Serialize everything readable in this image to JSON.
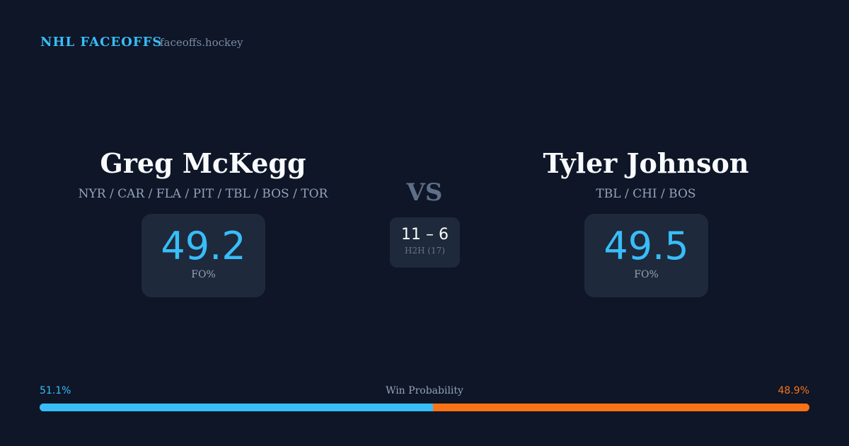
{
  "header": {
    "brand": "NHL FACEOFFS",
    "domain": "faceoffs.hockey"
  },
  "left": {
    "name": "Greg McKegg",
    "teams": "NYR / CAR / FLA / PIT / TBL / BOS / TOR",
    "fo_value": "49.2",
    "fo_label": "FO%"
  },
  "right": {
    "name": "Tyler Johnson",
    "teams": "TBL / CHI / BOS",
    "fo_value": "49.5",
    "fo_label": "FO%"
  },
  "versus": {
    "label": "VS",
    "score": "11 – 6",
    "h2h_label": "H2H (17)"
  },
  "win_probability": {
    "label": "Win Probability",
    "left_text": "51.1%",
    "right_text": "48.9%",
    "left_percent": 51.1,
    "right_percent": 48.9
  },
  "colors": {
    "left": "#38bdf8",
    "right": "#f97316",
    "background": "#0e1628",
    "card": "#1e293b"
  }
}
